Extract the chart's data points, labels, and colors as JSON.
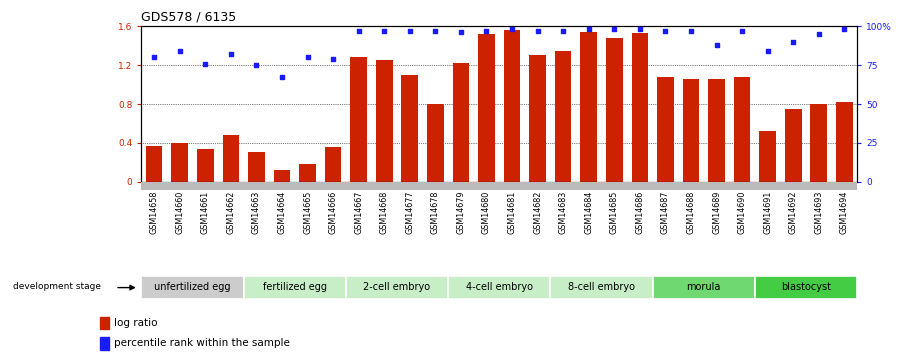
{
  "title": "GDS578 / 6135",
  "samples": [
    "GSM14658",
    "GSM14660",
    "GSM14661",
    "GSM14662",
    "GSM14663",
    "GSM14664",
    "GSM14665",
    "GSM14666",
    "GSM14667",
    "GSM14668",
    "GSM14677",
    "GSM14678",
    "GSM14679",
    "GSM14680",
    "GSM14681",
    "GSM14682",
    "GSM14683",
    "GSM14684",
    "GSM14685",
    "GSM14686",
    "GSM14687",
    "GSM14688",
    "GSM14689",
    "GSM14690",
    "GSM14691",
    "GSM14692",
    "GSM14693",
    "GSM14694"
  ],
  "log_ratio": [
    0.37,
    0.4,
    0.33,
    0.48,
    0.3,
    0.12,
    0.18,
    0.36,
    1.28,
    1.25,
    1.1,
    0.8,
    1.22,
    1.52,
    1.56,
    1.3,
    1.35,
    1.54,
    1.48,
    1.53,
    1.08,
    1.06,
    1.06,
    1.08,
    0.52,
    0.75,
    0.8,
    0.82
  ],
  "percentile": [
    80,
    84,
    76,
    82,
    75,
    67,
    80,
    79,
    97,
    97,
    97,
    97,
    96,
    97,
    98,
    97,
    97,
    98,
    98,
    98,
    97,
    97,
    88,
    97,
    84,
    90,
    95,
    98
  ],
  "bar_color": "#cc2200",
  "dot_color": "#1a1aff",
  "ylim_left": [
    0,
    1.6
  ],
  "ylim_right": [
    0,
    100
  ],
  "yticks_left": [
    0,
    0.4,
    0.8,
    1.2,
    1.6
  ],
  "yticks_right": [
    0,
    25,
    50,
    75,
    100
  ],
  "ytick_labels_left": [
    "0",
    "0.4",
    "0.8",
    "1.2",
    "1.6"
  ],
  "ytick_labels_right": [
    "0",
    "25",
    "50",
    "75",
    "100%"
  ],
  "stages": [
    {
      "label": "unfertilized egg",
      "start": 0,
      "end": 4,
      "color": "#cccccc"
    },
    {
      "label": "fertilized egg",
      "start": 4,
      "end": 8,
      "color": "#c8eec8"
    },
    {
      "label": "2-cell embryo",
      "start": 8,
      "end": 12,
      "color": "#c8eec8"
    },
    {
      "label": "4-cell embryo",
      "start": 12,
      "end": 16,
      "color": "#c8eec8"
    },
    {
      "label": "8-cell embryo",
      "start": 16,
      "end": 20,
      "color": "#c8eec8"
    },
    {
      "label": "morula",
      "start": 20,
      "end": 24,
      "color": "#70d870"
    },
    {
      "label": "blastocyst",
      "start": 24,
      "end": 28,
      "color": "#44cc44"
    }
  ],
  "legend_bar_label": "log ratio",
  "legend_dot_label": "percentile rank within the sample",
  "dev_stage_label": "development stage",
  "background_color": "#ffffff",
  "title_fontsize": 9,
  "tick_fontsize": 6.5,
  "stage_fontsize": 7,
  "label_fontsize": 7.5,
  "header_color": "#bbbbbb"
}
